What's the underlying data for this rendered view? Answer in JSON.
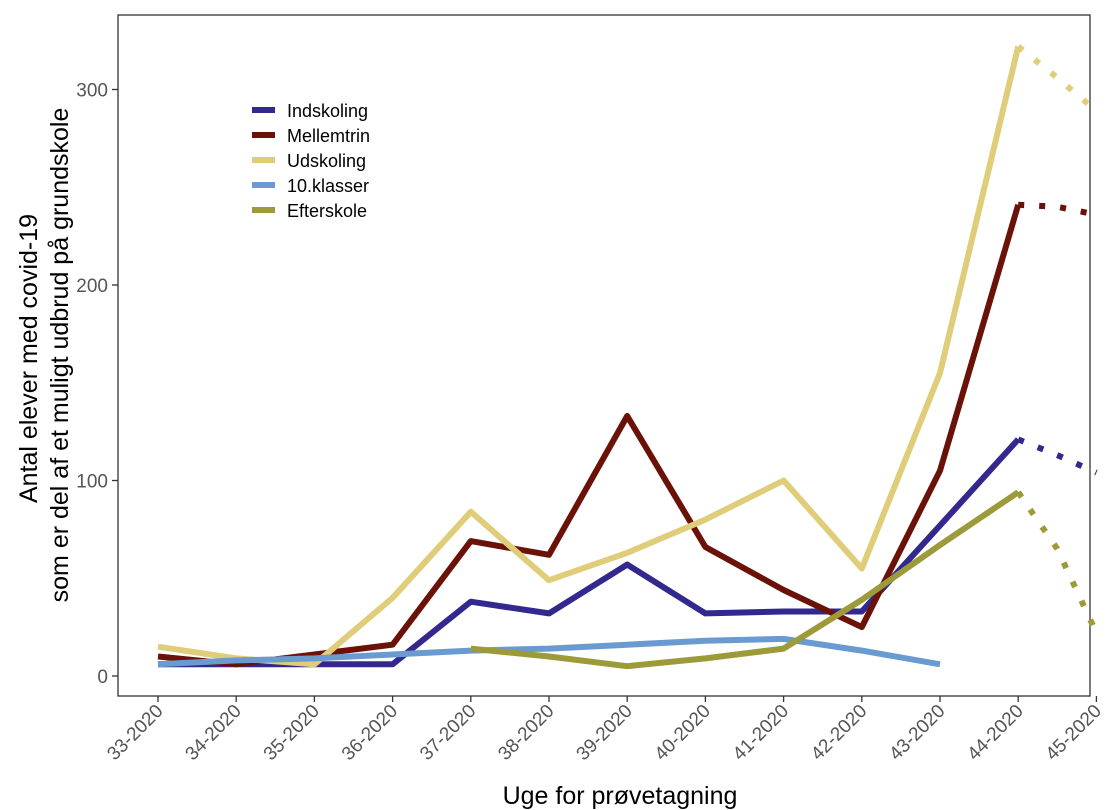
{
  "chart_data": {
    "type": "line",
    "title": "",
    "xlabel": "Uge for prøvetagning",
    "ylabel_lines": [
      "Antal elever med covid-19",
      "som er del af et muligt udbrud på grundskole"
    ],
    "categories": [
      "33-2020",
      "34-2020",
      "35-2020",
      "36-2020",
      "37-2020",
      "38-2020",
      "39-2020",
      "40-2020",
      "41-2020",
      "42-2020",
      "43-2020",
      "44-2020",
      "45-2020"
    ],
    "yticks": [
      0,
      100,
      200,
      300
    ],
    "ylim": [
      -10,
      330
    ],
    "grid": false,
    "legend_position": "top-left",
    "series": [
      {
        "name": "Indskoling",
        "color": "#33288e",
        "values": [
          6,
          6,
          6,
          6,
          38,
          32,
          57,
          32,
          33,
          33,
          77,
          121,
          null
        ],
        "dotted": [
          121,
          113,
          104
        ]
      },
      {
        "name": "Mellemtrin",
        "color": "#6b1208",
        "values": [
          10,
          6,
          11,
          16,
          69,
          62,
          133,
          66,
          44,
          25,
          105,
          241,
          null
        ],
        "dotted": [
          241,
          240,
          236
        ]
      },
      {
        "name": "Udskoling",
        "color": "#e0cd7a",
        "values": [
          15,
          9,
          6,
          40,
          84,
          49,
          63,
          80,
          100,
          55,
          155,
          322,
          null
        ],
        "dotted": [
          322,
          306,
          289
        ]
      },
      {
        "name": "10.klasser",
        "color": "#6a9bd0",
        "values": [
          6,
          8,
          9,
          11,
          13,
          14,
          16,
          18,
          19,
          13,
          6,
          null,
          null
        ],
        "dotted": null
      },
      {
        "name": "Efterskole",
        "color": "#9c9a39",
        "values": [
          null,
          null,
          null,
          null,
          14,
          10,
          5,
          9,
          14,
          39,
          67,
          94,
          null
        ],
        "dotted": [
          94,
          65,
          22
        ]
      }
    ]
  }
}
